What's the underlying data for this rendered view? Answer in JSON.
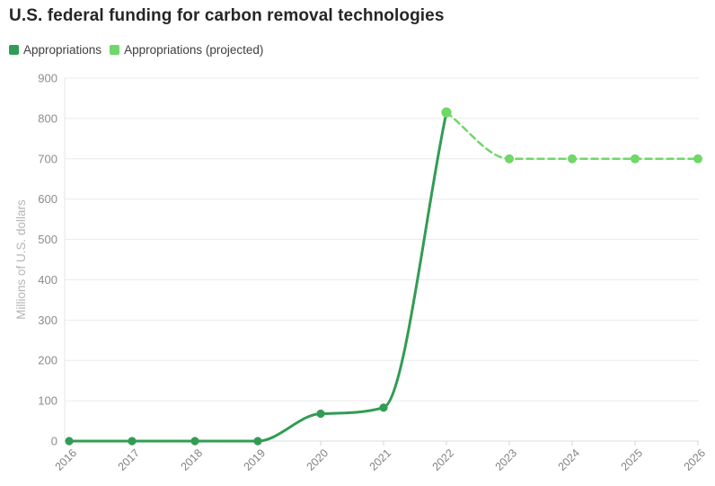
{
  "chart": {
    "title": "U.S. federal funding for carbon removal technologies"
  },
  "chart_data": {
    "type": "line",
    "title": "U.S. federal funding for carbon removal technologies",
    "xlabel": "",
    "ylabel": "Millions of U.S. dollars",
    "categories": [
      2016,
      2017,
      2018,
      2019,
      2020,
      2021,
      2022,
      2023,
      2024,
      2025,
      2026
    ],
    "series": [
      {
        "name": "Appropriations",
        "color": "#319c54",
        "line_style": "solid",
        "x": [
          2016,
          2017,
          2018,
          2019,
          2020,
          2021,
          2022
        ],
        "values": [
          0,
          0,
          0,
          0,
          68,
          83,
          815
        ]
      },
      {
        "name": "Appropriations (projected)",
        "color": "#6fd868",
        "line_style": "dashed",
        "x": [
          2022,
          2023,
          2024,
          2025,
          2026
        ],
        "values": [
          815,
          700,
          700,
          700,
          700
        ]
      }
    ],
    "ylim": [
      0,
      900
    ],
    "yticks": [
      0,
      100,
      200,
      300,
      400,
      500,
      600,
      700,
      800,
      900
    ],
    "grid": true,
    "legend_position": "top-left"
  },
  "colors": {
    "series_actual": "#319c54",
    "series_projected": "#6fd868",
    "gridline": "#ebebeb",
    "baseline": "#dcdcdc",
    "axis_line": "#e7e7e7",
    "tick_mark": "#d6d6d6",
    "title_text": "#262626",
    "legend_text": "#3e3e3e",
    "y_tick_text": "#8c8c8c",
    "x_tick_text": "#828282",
    "axis_title_text": "#b5b5b5",
    "background": "#ffffff"
  }
}
